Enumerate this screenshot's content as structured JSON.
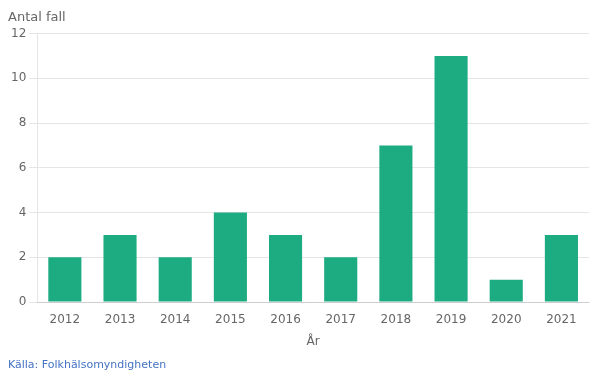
{
  "chart_data": {
    "type": "bar",
    "ylabel": "Antal fall",
    "xlabel": "År",
    "categories": [
      "2012",
      "2013",
      "2014",
      "2015",
      "2016",
      "2017",
      "2018",
      "2019",
      "2020",
      "2021"
    ],
    "values": [
      2,
      3,
      2,
      4,
      3,
      2,
      7,
      11,
      1,
      3
    ],
    "color": "#1dab82",
    "ylim": [
      0,
      12
    ],
    "yticks": [
      0,
      2,
      4,
      6,
      8,
      10,
      12
    ],
    "grid": true,
    "annotations": [
      {
        "text": "Källa: Folkhälsomyndigheten",
        "color": "#4472c4"
      }
    ]
  }
}
